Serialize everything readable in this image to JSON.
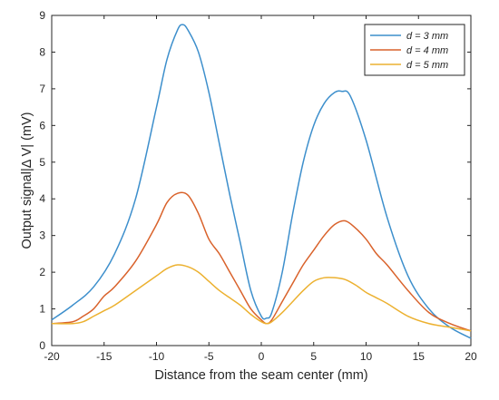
{
  "chart_data": {
    "type": "line",
    "title": "",
    "xlabel": "Distance from the seam center (mm)",
    "ylabel": "Output signal|Δ V| (mV)",
    "xlim": [
      -20,
      20
    ],
    "ylim": [
      0,
      9
    ],
    "xticks": [
      -20,
      -15,
      -10,
      -5,
      0,
      5,
      10,
      15,
      20
    ],
    "yticks": [
      0,
      1,
      2,
      3,
      4,
      5,
      6,
      7,
      8,
      9
    ],
    "grid": false,
    "legend_position": "top-right",
    "legend": [
      "d = 3 mm",
      "d = 4 mm",
      "d = 5 mm"
    ],
    "series": [
      {
        "name": "d = 3 mm",
        "color": "#3d8fcc",
        "x": [
          -20,
          -18,
          -16,
          -14,
          -12,
          -10,
          -9,
          -8,
          -7.5,
          -7,
          -6,
          -5,
          -4,
          -3,
          -2,
          -1,
          0,
          0.5,
          1,
          2,
          3,
          4,
          5,
          6,
          7,
          7.7,
          8.5,
          10,
          12,
          14,
          16,
          18,
          20
        ],
        "y": [
          0.7,
          1.1,
          1.6,
          2.5,
          4.0,
          6.5,
          7.8,
          8.6,
          8.75,
          8.6,
          8.0,
          6.9,
          5.5,
          4.1,
          2.8,
          1.5,
          0.8,
          0.75,
          0.9,
          2.0,
          3.6,
          5.0,
          6.0,
          6.6,
          6.9,
          6.93,
          6.8,
          5.6,
          3.5,
          1.9,
          1.0,
          0.5,
          0.2
        ]
      },
      {
        "name": "d = 4 mm",
        "color": "#d9622b",
        "x": [
          -20,
          -18,
          -17,
          -16,
          -15,
          -14,
          -12,
          -10,
          -9,
          -8,
          -7,
          -6,
          -5,
          -4,
          -3,
          -2,
          -1,
          0,
          0.5,
          1,
          2,
          3,
          4,
          5,
          6,
          7,
          8,
          9,
          10,
          11,
          12,
          14,
          16,
          18,
          20
        ],
        "y": [
          0.6,
          0.65,
          0.8,
          1.0,
          1.35,
          1.6,
          2.3,
          3.3,
          3.9,
          4.15,
          4.1,
          3.6,
          2.9,
          2.5,
          2.0,
          1.5,
          1.0,
          0.7,
          0.6,
          0.7,
          1.2,
          1.7,
          2.2,
          2.6,
          3.0,
          3.3,
          3.4,
          3.2,
          2.9,
          2.5,
          2.2,
          1.5,
          0.9,
          0.6,
          0.4
        ]
      },
      {
        "name": "d = 5 mm",
        "color": "#ecb130",
        "x": [
          -20,
          -18,
          -17,
          -16,
          -15,
          -14,
          -12,
          -10,
          -9,
          -8,
          -7,
          -6,
          -5,
          -4,
          -3,
          -2,
          -1,
          0,
          0.5,
          1,
          2,
          3,
          4,
          5,
          6,
          7,
          8,
          9,
          10,
          11,
          12,
          14,
          16,
          18,
          20
        ],
        "y": [
          0.6,
          0.6,
          0.65,
          0.8,
          0.95,
          1.1,
          1.5,
          1.9,
          2.1,
          2.2,
          2.15,
          2.0,
          1.75,
          1.5,
          1.3,
          1.1,
          0.85,
          0.65,
          0.6,
          0.65,
          0.9,
          1.2,
          1.5,
          1.75,
          1.85,
          1.85,
          1.8,
          1.65,
          1.45,
          1.3,
          1.15,
          0.8,
          0.6,
          0.5,
          0.4
        ]
      }
    ]
  }
}
